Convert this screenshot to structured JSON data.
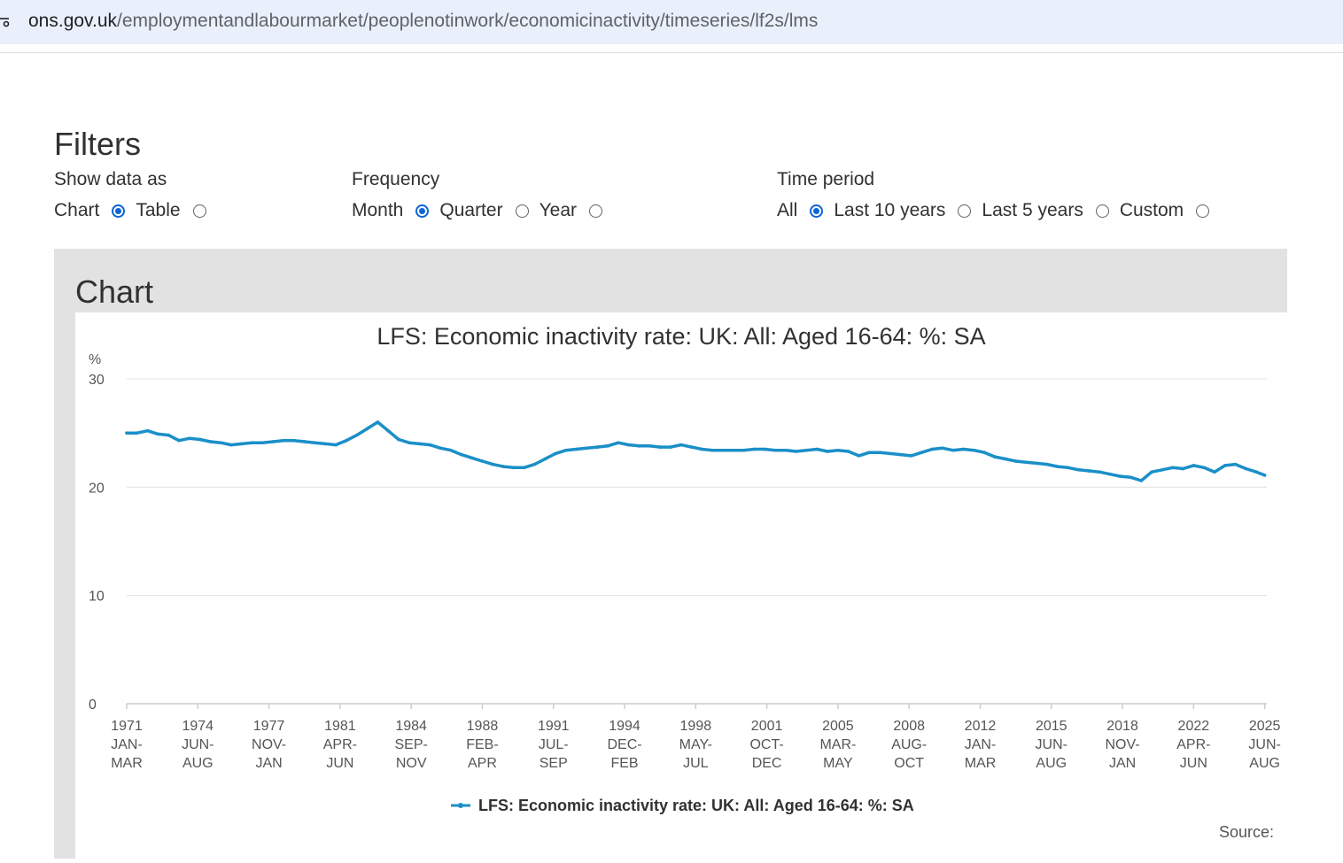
{
  "browser": {
    "url_host": "ons.gov.uk",
    "url_path": "/employmentandlabourmarket/peoplenotinwork/economicinactivity/timeseries/lf2s/lms"
  },
  "filters": {
    "title": "Filters",
    "show_data_as": {
      "label": "Show data as",
      "options": [
        {
          "label": "Chart",
          "checked": true
        },
        {
          "label": "Table",
          "checked": false
        }
      ]
    },
    "frequency": {
      "label": "Frequency",
      "options": [
        {
          "label": "Month",
          "checked": true
        },
        {
          "label": "Quarter",
          "checked": false
        },
        {
          "label": "Year",
          "checked": false
        }
      ]
    },
    "time_period": {
      "label": "Time period",
      "options": [
        {
          "label": "All",
          "checked": true
        },
        {
          "label": "Last 10 years",
          "checked": false
        },
        {
          "label": "Last 5 years",
          "checked": false
        },
        {
          "label": "Custom",
          "checked": false
        }
      ]
    }
  },
  "chart_section": {
    "heading": "Chart",
    "source_label": "Source:"
  },
  "colors": {
    "series": "#1a8fc8",
    "accent": "#0b65d6",
    "panel_bg": "#e2e2e2"
  },
  "chart_data": {
    "type": "line",
    "title": "LFS: Economic inactivity rate: UK: All: Aged 16-64: %: SA",
    "ylabel": "%",
    "xlabel": "",
    "ylim": [
      0,
      30
    ],
    "yticks": [
      0,
      10,
      20,
      30
    ],
    "xlim": [
      1971.0,
      2025.5
    ],
    "xtick_labels": [
      {
        "x": 1971.0,
        "lines": [
          "1971",
          "JAN-",
          "MAR"
        ]
      },
      {
        "x": 1974.4,
        "lines": [
          "1974",
          "JUN-",
          "AUG"
        ]
      },
      {
        "x": 1977.8,
        "lines": [
          "1977",
          "NOV-",
          "JAN"
        ]
      },
      {
        "x": 1981.2,
        "lines": [
          "1981",
          "APR-",
          "JUN"
        ]
      },
      {
        "x": 1984.6,
        "lines": [
          "1984",
          "SEP-",
          "NOV"
        ]
      },
      {
        "x": 1988.0,
        "lines": [
          "1988",
          "FEB-",
          "APR"
        ]
      },
      {
        "x": 1991.4,
        "lines": [
          "1991",
          "JUL-",
          "SEP"
        ]
      },
      {
        "x": 1994.8,
        "lines": [
          "1994",
          "DEC-",
          "FEB"
        ]
      },
      {
        "x": 1998.2,
        "lines": [
          "1998",
          "MAY-",
          "JUL"
        ]
      },
      {
        "x": 2001.6,
        "lines": [
          "2001",
          "OCT-",
          "DEC"
        ]
      },
      {
        "x": 2005.0,
        "lines": [
          "2005",
          "MAR-",
          "MAY"
        ]
      },
      {
        "x": 2008.4,
        "lines": [
          "2008",
          "AUG-",
          "OCT"
        ]
      },
      {
        "x": 2011.8,
        "lines": [
          "2012",
          "JAN-",
          "MAR"
        ]
      },
      {
        "x": 2015.2,
        "lines": [
          "2015",
          "JUN-",
          "AUG"
        ]
      },
      {
        "x": 2018.6,
        "lines": [
          "2018",
          "NOV-",
          "JAN"
        ]
      },
      {
        "x": 2022.0,
        "lines": [
          "2022",
          "APR-",
          "JUN"
        ]
      },
      {
        "x": 2025.4,
        "lines": [
          "2025",
          "JUN-",
          "AUG"
        ]
      }
    ],
    "grid": true,
    "legend_position": "bottom",
    "series": [
      {
        "name": "LFS: Economic inactivity rate: UK: All: Aged 16-64: %: SA",
        "x": [
          1971.0,
          1971.5,
          1972.0,
          1972.5,
          1973.0,
          1973.5,
          1974.0,
          1974.5,
          1975.0,
          1975.5,
          1976.0,
          1976.5,
          1977.0,
          1977.5,
          1978.0,
          1978.5,
          1979.0,
          1979.5,
          1980.0,
          1980.5,
          1981.0,
          1981.5,
          1982.0,
          1982.5,
          1983.0,
          1983.5,
          1984.0,
          1984.5,
          1985.0,
          1985.5,
          1986.0,
          1986.5,
          1987.0,
          1987.5,
          1988.0,
          1988.5,
          1989.0,
          1989.5,
          1990.0,
          1990.5,
          1991.0,
          1991.5,
          1992.0,
          1992.5,
          1993.0,
          1993.5,
          1994.0,
          1994.5,
          1995.0,
          1995.5,
          1996.0,
          1996.5,
          1997.0,
          1997.5,
          1998.0,
          1998.5,
          1999.0,
          1999.5,
          2000.0,
          2000.5,
          2001.0,
          2001.5,
          2002.0,
          2002.5,
          2003.0,
          2003.5,
          2004.0,
          2004.5,
          2005.0,
          2005.5,
          2006.0,
          2006.5,
          2007.0,
          2007.5,
          2008.0,
          2008.5,
          2009.0,
          2009.5,
          2010.0,
          2010.5,
          2011.0,
          2011.5,
          2012.0,
          2012.5,
          2013.0,
          2013.5,
          2014.0,
          2014.5,
          2015.0,
          2015.5,
          2016.0,
          2016.5,
          2017.0,
          2017.5,
          2018.0,
          2018.5,
          2019.0,
          2019.5,
          2020.0,
          2020.5,
          2021.0,
          2021.5,
          2022.0,
          2022.5,
          2023.0,
          2023.5,
          2024.0,
          2024.5,
          2025.0,
          2025.4
        ],
        "values": [
          25.0,
          25.0,
          25.2,
          24.9,
          24.8,
          24.3,
          24.5,
          24.4,
          24.2,
          24.1,
          23.9,
          24.0,
          24.1,
          24.1,
          24.2,
          24.3,
          24.3,
          24.2,
          24.1,
          24.0,
          23.9,
          24.3,
          24.8,
          25.4,
          26.0,
          25.2,
          24.4,
          24.1,
          24.0,
          23.9,
          23.6,
          23.4,
          23.0,
          22.7,
          22.4,
          22.1,
          21.9,
          21.8,
          21.8,
          22.1,
          22.6,
          23.1,
          23.4,
          23.5,
          23.6,
          23.7,
          23.8,
          24.1,
          23.9,
          23.8,
          23.8,
          23.7,
          23.7,
          23.9,
          23.7,
          23.5,
          23.4,
          23.4,
          23.4,
          23.4,
          23.5,
          23.5,
          23.4,
          23.4,
          23.3,
          23.4,
          23.5,
          23.3,
          23.4,
          23.3,
          22.9,
          23.2,
          23.2,
          23.1,
          23.0,
          22.9,
          23.2,
          23.5,
          23.6,
          23.4,
          23.5,
          23.4,
          23.2,
          22.8,
          22.6,
          22.4,
          22.3,
          22.2,
          22.1,
          21.9,
          21.8,
          21.6,
          21.5,
          21.4,
          21.2,
          21.0,
          20.9,
          20.6,
          21.4,
          21.6,
          21.8,
          21.7,
          22.0,
          21.8,
          21.4,
          22.0,
          22.1,
          21.7,
          21.4,
          21.1
        ]
      }
    ]
  }
}
